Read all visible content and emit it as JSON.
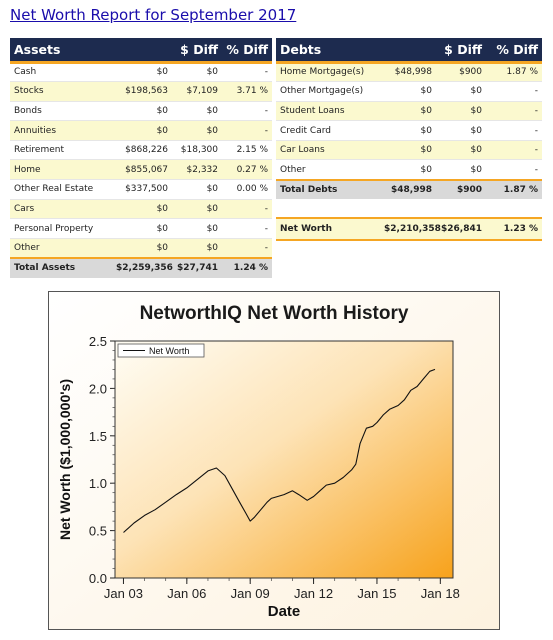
{
  "report": {
    "title": "Net Worth Report for September 2017"
  },
  "assets": {
    "headers": [
      "Assets",
      "$ Diff",
      "% Diff"
    ],
    "rows": [
      {
        "name": "Cash",
        "value": "$0",
        "diff": "$0",
        "pct": "-"
      },
      {
        "name": "Stocks",
        "value": "$198,563",
        "diff": "$7,109",
        "pct": "3.71 %"
      },
      {
        "name": "Bonds",
        "value": "$0",
        "diff": "$0",
        "pct": "-"
      },
      {
        "name": "Annuities",
        "value": "$0",
        "diff": "$0",
        "pct": "-"
      },
      {
        "name": "Retirement",
        "value": "$868,226",
        "diff": "$18,300",
        "pct": "2.15 %"
      },
      {
        "name": "Home",
        "value": "$855,067",
        "diff": "$2,332",
        "pct": "0.27 %"
      },
      {
        "name": "Other Real Estate",
        "value": "$337,500",
        "diff": "$0",
        "pct": "0.00 %"
      },
      {
        "name": "Cars",
        "value": "$0",
        "diff": "$0",
        "pct": "-"
      },
      {
        "name": "Personal Property",
        "value": "$0",
        "diff": "$0",
        "pct": "-"
      },
      {
        "name": "Other",
        "value": "$0",
        "diff": "$0",
        "pct": "-"
      }
    ],
    "total": {
      "name": "Total Assets",
      "value": "$2,259,356",
      "diff": "$27,741",
      "pct": "1.24 %"
    }
  },
  "debts": {
    "headers": [
      "Debts",
      "$ Diff",
      "% Diff"
    ],
    "rows": [
      {
        "name": "Home Mortgage(s)",
        "value": "$48,998",
        "diff": "$900",
        "pct": "1.87 %"
      },
      {
        "name": "Other Mortgage(s)",
        "value": "$0",
        "diff": "$0",
        "pct": "-"
      },
      {
        "name": "Student Loans",
        "value": "$0",
        "diff": "$0",
        "pct": "-"
      },
      {
        "name": "Credit Card",
        "value": "$0",
        "diff": "$0",
        "pct": "-"
      },
      {
        "name": "Car Loans",
        "value": "$0",
        "diff": "$0",
        "pct": "-"
      },
      {
        "name": "Other",
        "value": "$0",
        "diff": "$0",
        "pct": "-"
      }
    ],
    "total": {
      "name": "Total Debts",
      "value": "$48,998",
      "diff": "$900",
      "pct": "1.87 %"
    },
    "net_worth": {
      "name": "Net Worth",
      "value": "$2,210,358",
      "diff": "$26,841",
      "pct": "1.23 %"
    }
  },
  "colors": {
    "header_bg": "#1d2b4f",
    "accent": "#f5a623",
    "alt_row": "#fbf9cf",
    "total_row": "#d9d9d9",
    "title_link": "#1a0dab"
  },
  "chart_data": {
    "type": "line",
    "title": "NetworthIQ Net Worth History",
    "xlabel": "Date",
    "ylabel": "Net Worth ($1,000,000's)",
    "legend": {
      "entries": [
        "Net Worth"
      ],
      "placement": "top-left"
    },
    "grid": false,
    "xlim": [
      2002.6,
      2018.6
    ],
    "ylim": [
      0,
      2.5
    ],
    "x_ticks": [
      2003,
      2006,
      2009,
      2012,
      2015,
      2018
    ],
    "x_tick_labels": [
      "Jan 03",
      "Jan 06",
      "Jan 09",
      "Jan 12",
      "Jan 15",
      "Jan 18"
    ],
    "y_ticks": [
      0,
      0.5,
      1.0,
      1.5,
      2.0,
      2.5
    ],
    "y_tick_labels": [
      "0.0",
      "0.5",
      "1.0",
      "1.5",
      "2.0",
      "2.5"
    ],
    "series": [
      {
        "name": "Net Worth",
        "x": [
          2003.0,
          2003.5,
          2004.0,
          2004.5,
          2005.0,
          2005.5,
          2006.0,
          2006.5,
          2007.0,
          2007.4,
          2007.8,
          2008.2,
          2008.5,
          2008.8,
          2009.0,
          2009.2,
          2009.5,
          2009.8,
          2010.0,
          2010.3,
          2010.6,
          2011.0,
          2011.3,
          2011.7,
          2012.0,
          2012.3,
          2012.6,
          2013.0,
          2013.4,
          2013.8,
          2014.0,
          2014.2,
          2014.5,
          2014.8,
          2015.0,
          2015.3,
          2015.6,
          2016.0,
          2016.3,
          2016.6,
          2016.9,
          2017.2,
          2017.5,
          2017.75
        ],
        "values": [
          0.48,
          0.58,
          0.66,
          0.72,
          0.8,
          0.88,
          0.95,
          1.04,
          1.13,
          1.16,
          1.08,
          0.92,
          0.8,
          0.68,
          0.6,
          0.64,
          0.72,
          0.8,
          0.84,
          0.86,
          0.88,
          0.92,
          0.88,
          0.82,
          0.86,
          0.92,
          0.98,
          1.0,
          1.06,
          1.14,
          1.2,
          1.42,
          1.58,
          1.6,
          1.64,
          1.72,
          1.78,
          1.82,
          1.88,
          1.98,
          2.02,
          2.1,
          2.18,
          2.2
        ]
      }
    ]
  }
}
